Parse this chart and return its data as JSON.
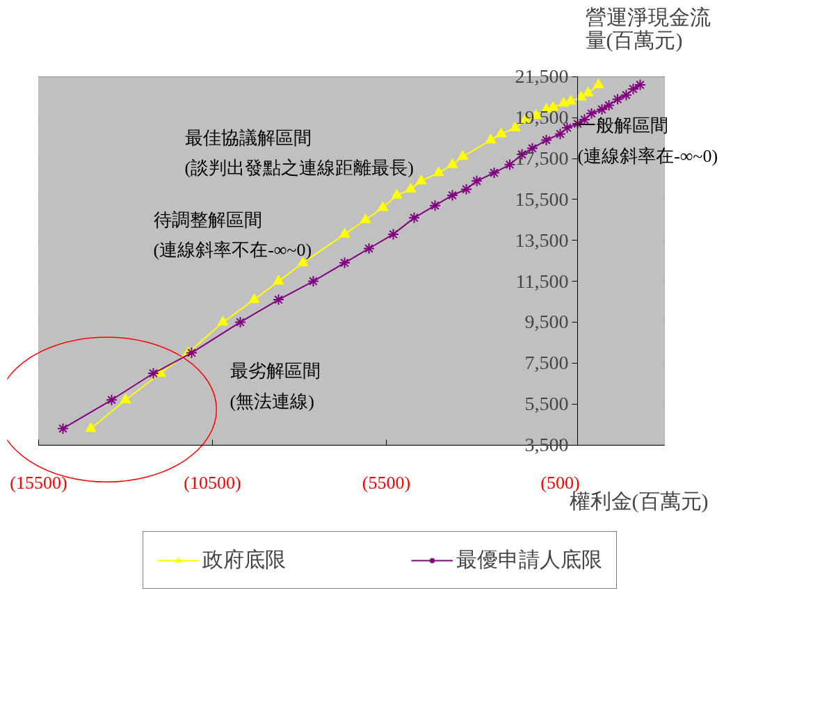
{
  "chart_data": {
    "type": "line",
    "xlabel": "權利金(百萬元)",
    "ylabel": "營運淨現金流量(百萬元)",
    "xlim": [
      -15500,
      2500
    ],
    "xticks": [
      {
        "value": -15500,
        "label": "(15500)"
      },
      {
        "value": -10500,
        "label": "(10500)"
      },
      {
        "value": -5500,
        "label": "(5500)"
      },
      {
        "value": -500,
        "label": "(500)"
      }
    ],
    "ylim": [
      3500,
      21500
    ],
    "yticks": [
      {
        "value": 3500,
        "label": "3,500"
      },
      {
        "value": 5500,
        "label": "5,500"
      },
      {
        "value": 7500,
        "label": "7,500"
      },
      {
        "value": 9500,
        "label": "9,500"
      },
      {
        "value": 11500,
        "label": "11,500"
      },
      {
        "value": 13500,
        "label": "13,500"
      },
      {
        "value": 15500,
        "label": "15,500"
      },
      {
        "value": 17500,
        "label": "17,500"
      },
      {
        "value": 19500,
        "label": "19,500"
      },
      {
        "value": 21500,
        "label": "21,500"
      }
    ],
    "grid": "y",
    "legend": "bottom",
    "annotations": [
      "最佳協議解區間\n(談判出發點之連線距離最長)",
      "待調整解區間\n(連線斜率不在-∞~0)",
      "最劣解區間\n(無法連線)",
      "一般解區間\n(連線斜率在-∞~0)"
    ],
    "series": [
      {
        "name": "政府底限",
        "color": "#ffff00",
        "marker": "triangle",
        "x": [
          -14000,
          -13000,
          -12000,
          -11200,
          -10200,
          -9300,
          -8600,
          -7900,
          -6700,
          -6100,
          -5600,
          -5200,
          -4800,
          -4500,
          -4000,
          -3600,
          -3300,
          -2500,
          -2200,
          -1800,
          -1500,
          -1200,
          -900,
          -700,
          -400,
          -200,
          100,
          300,
          600
        ],
        "values": [
          4300,
          5700,
          7000,
          8000,
          9500,
          10600,
          11500,
          12400,
          13800,
          14500,
          15100,
          15700,
          16000,
          16400,
          16800,
          17200,
          17600,
          18400,
          18700,
          19000,
          19400,
          19600,
          19900,
          20000,
          20200,
          20300,
          20500,
          20700,
          21100
        ]
      },
      {
        "name": "最優申請人底限",
        "color": "#800080",
        "marker": "cross",
        "x": [
          -14800,
          -13400,
          -12200,
          -11100,
          -9700,
          -8600,
          -7600,
          -6700,
          -6000,
          -5300,
          -4700,
          -4100,
          -3600,
          -3200,
          -2900,
          -2400,
          -1950,
          -1600,
          -1300,
          -900,
          -500,
          -300,
          0,
          200,
          400,
          700,
          900,
          1150,
          1400,
          1600,
          1800
        ],
        "values": [
          4300,
          5700,
          7000,
          8000,
          9500,
          10600,
          11500,
          12400,
          13100,
          13800,
          14600,
          15200,
          15700,
          16000,
          16400,
          16800,
          17200,
          17700,
          18000,
          18400,
          18700,
          19000,
          19200,
          19400,
          19700,
          19900,
          20100,
          20400,
          20600,
          20900,
          21100
        ]
      }
    ]
  }
}
